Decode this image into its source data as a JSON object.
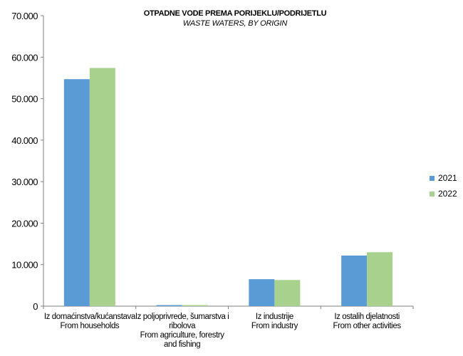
{
  "chart_data": {
    "type": "bar",
    "title": "OTPADNE VODE PREMA PORIJEKLU/PODRIJETLU",
    "subtitle": "WASTE WATERS, BY ORIGIN",
    "categories": [
      [
        "Iz domaćinstva/kućanstava",
        "From households"
      ],
      [
        "Iz poljoprivrede, šumarstva i",
        "ribolova",
        "From agriculture, forestry",
        "and fishing"
      ],
      [
        "Iz industrije",
        "From industry"
      ],
      [
        "Iz ostalih djelatnosti",
        "From other activities"
      ]
    ],
    "series": [
      {
        "name": "2021",
        "values": [
          54700,
          150,
          6500,
          12200
        ],
        "color": "#5b9bd5"
      },
      {
        "name": "2022",
        "values": [
          57400,
          100,
          6300,
          13000
        ],
        "color": "#a9d18e"
      }
    ],
    "ylim": [
      0,
      70000
    ],
    "yticks": [
      0,
      10000,
      20000,
      30000,
      40000,
      50000,
      60000,
      70000
    ],
    "ytick_labels": [
      "0",
      "10.000",
      "20.000",
      "30.000",
      "40.000",
      "50.000",
      "60.000",
      "70.000"
    ],
    "grid": false,
    "legend": "right"
  }
}
